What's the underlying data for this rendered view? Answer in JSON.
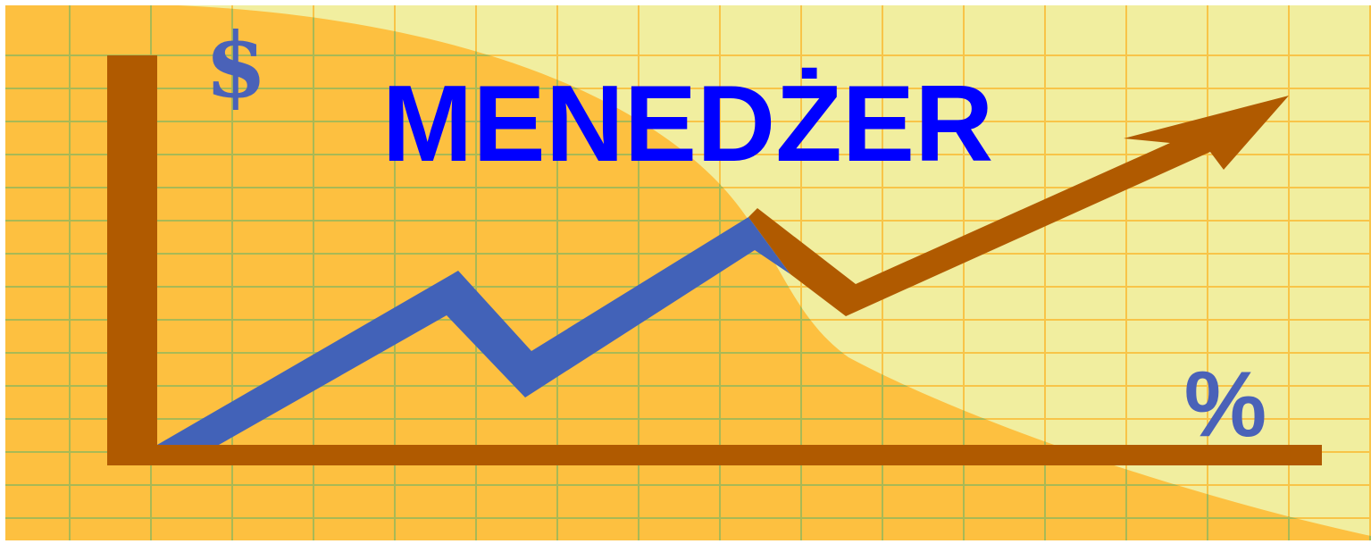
{
  "title": "MENEDŻER",
  "currency_symbol": "$",
  "percent_symbol": "%"
}
